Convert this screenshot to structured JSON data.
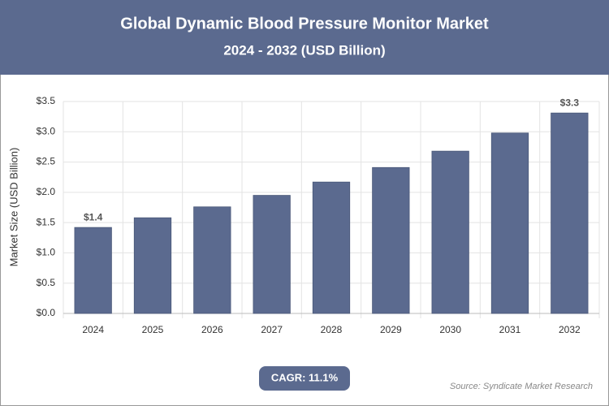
{
  "chart_data": {
    "type": "bar",
    "title": "Global Dynamic Blood Pressure Monitor Market",
    "subtitle": "2024 - 2032 (USD Billion)",
    "y_label": "Market Size (USD Billion)",
    "categories": [
      "2024",
      "2025",
      "2026",
      "2027",
      "2028",
      "2029",
      "2030",
      "2031",
      "2032"
    ],
    "values": [
      1.42,
      1.58,
      1.76,
      1.95,
      2.17,
      2.41,
      2.68,
      2.98,
      3.31
    ],
    "value_labels": [
      "$1.4",
      null,
      null,
      null,
      null,
      null,
      null,
      null,
      "$3.3"
    ],
    "color": "#5b6a8f",
    "ylim": [
      0,
      3.5
    ],
    "yticks": [
      {
        "value": 0,
        "label": "$0.0"
      },
      {
        "value": 0.5,
        "label": "$0.5"
      },
      {
        "value": 1,
        "label": "$1.0"
      },
      {
        "value": 1.5,
        "label": "$1.5"
      },
      {
        "value": 2,
        "label": "$2.0"
      },
      {
        "value": 2.5,
        "label": "$2.5"
      },
      {
        "value": 3,
        "label": "$3.0"
      },
      {
        "value": 3.5,
        "label": "$3.5"
      }
    ],
    "grid": true,
    "cagr": "CAGR: 11.1%",
    "source": "Source: Syndicate Market Research"
  }
}
